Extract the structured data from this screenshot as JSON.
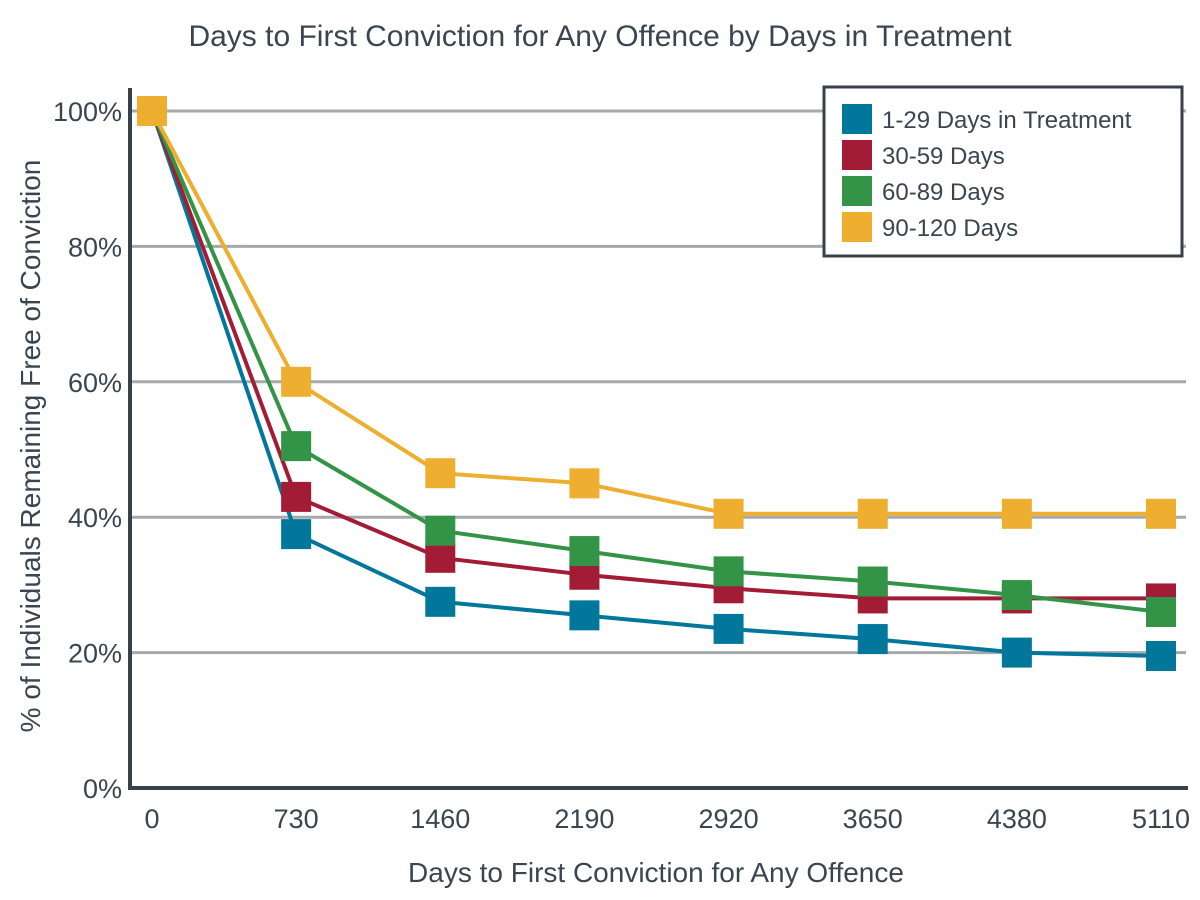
{
  "chart_data": {
    "type": "line",
    "title": "Days to First Conviction for Any Offence by Days in Treatment",
    "xlabel": "Days to First Conviction for Any Offence",
    "ylabel": "% of Individuals Remaining Free of Conviction",
    "x": [
      0,
      730,
      1460,
      2190,
      2920,
      3650,
      4380,
      5110
    ],
    "x_tick_labels": [
      "0",
      "730",
      "1460",
      "2190",
      "2920",
      "3650",
      "4380",
      "5110"
    ],
    "y_ticks": [
      0,
      20,
      40,
      60,
      80,
      100
    ],
    "y_tick_labels": [
      "0%",
      "20%",
      "40%",
      "60%",
      "80%",
      "100%"
    ],
    "ylim": [
      0,
      100
    ],
    "xlim": [
      0,
      5110
    ],
    "grid": "horizontal",
    "legend_position": "top-right",
    "series": [
      {
        "name": "1-29 Days in Treatment",
        "color": "#00779b",
        "values": [
          100,
          37.5,
          27.5,
          25.5,
          23.5,
          22,
          20,
          19.5
        ]
      },
      {
        "name": "30-59 Days",
        "color": "#a31c35",
        "values": [
          100,
          43,
          34,
          31.5,
          29.5,
          28,
          28,
          28
        ]
      },
      {
        "name": "60-89 Days",
        "color": "#339447",
        "values": [
          100,
          50.5,
          38,
          35,
          32,
          30.5,
          28.5,
          26
        ]
      },
      {
        "name": "90-120 Days",
        "color": "#eeae2f",
        "values": [
          100,
          60,
          46.5,
          45,
          40.5,
          40.5,
          40.5,
          40.5
        ]
      }
    ]
  }
}
